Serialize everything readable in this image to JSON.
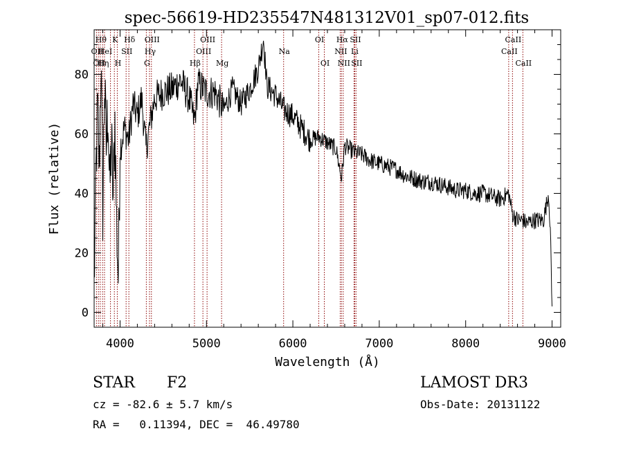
{
  "chart_data": {
    "type": "line",
    "title": "spec-56619-HD235547N481312V01_sp07-012.fits",
    "xlabel": "Wavelength (Å)",
    "ylabel": "Flux (relative)",
    "xlim": [
      3700,
      9100
    ],
    "ylim": [
      -5,
      95
    ],
    "xticks": [
      4000,
      5000,
      6000,
      7000,
      8000,
      9000
    ],
    "yticks": [
      0,
      20,
      40,
      60,
      80
    ],
    "grid": false,
    "legend": "none",
    "line_color": "#000000",
    "marker_color": "#8b0000",
    "series": [
      {
        "x": [
          3700,
          3720,
          3740,
          3760,
          3780,
          3800,
          3820,
          3840,
          3860,
          3880,
          3900,
          3920,
          3940,
          3960,
          3980,
          4000,
          4050,
          4100,
          4150,
          4200,
          4250,
          4300,
          4340,
          4400,
          4500,
          4600,
          4700,
          4800,
          4861,
          4900,
          5000,
          5100,
          5200,
          5300,
          5400,
          5500,
          5600,
          5660,
          5700,
          5800,
          5900,
          6000,
          6100,
          6200,
          6300,
          6400,
          6500,
          6563,
          6600,
          6700,
          6800,
          6900,
          7000,
          7100,
          7200,
          7300,
          7400,
          7500,
          7600,
          7700,
          7800,
          7900,
          8000,
          8100,
          8200,
          8300,
          8400,
          8498,
          8542,
          8600,
          8662,
          8700,
          8800,
          8900,
          8960,
          8980,
          9000
        ],
        "y": [
          8,
          45,
          68,
          48,
          86,
          35,
          78,
          55,
          70,
          40,
          58,
          38,
          65,
          30,
          12,
          55,
          62,
          58,
          70,
          66,
          72,
          55,
          62,
          72,
          74,
          75,
          78,
          72,
          64,
          77,
          74,
          74,
          68,
          75,
          70,
          75,
          82,
          92,
          76,
          73,
          68,
          66,
          62,
          58,
          59,
          57,
          55,
          45,
          56,
          54,
          53,
          51,
          50,
          49,
          48,
          46,
          45,
          44,
          44,
          43,
          42,
          41,
          41,
          40,
          40,
          39,
          38,
          40,
          33,
          31,
          31,
          30,
          31,
          31,
          40,
          28,
          1
        ]
      }
    ]
  },
  "line_marks": [
    {
      "w": 3727,
      "label": "OII",
      "row": 2
    },
    {
      "w": 3750,
      "label": "OII",
      "row": 3
    },
    {
      "w": 3771,
      "label": "Hθ",
      "row": 1
    },
    {
      "w": 3798,
      "label": "Hη",
      "row": 3
    },
    {
      "w": 3820,
      "label": "HeI",
      "row": 2
    },
    {
      "w": 3889,
      "label": "",
      "row": 0
    },
    {
      "w": 3934,
      "label": "K",
      "row": 1
    },
    {
      "w": 3968,
      "label": "H",
      "row": 3
    },
    {
      "w": 4070,
      "label": "SII",
      "row": 2
    },
    {
      "w": 4102,
      "label": "Hδ",
      "row": 1
    },
    {
      "w": 4304,
      "label": "G",
      "row": 3
    },
    {
      "w": 4341,
      "label": "Hγ",
      "row": 2
    },
    {
      "w": 4363,
      "label": "OIII",
      "row": 1
    },
    {
      "w": 4861,
      "label": "Hβ",
      "row": 3
    },
    {
      "w": 4959,
      "label": "OIII",
      "row": 2
    },
    {
      "w": 5007,
      "label": "OIII",
      "row": 1
    },
    {
      "w": 5175,
      "label": "Mg",
      "row": 3
    },
    {
      "w": 5893,
      "label": "Na",
      "row": 2
    },
    {
      "w": 6300,
      "label": "OI",
      "row": 1
    },
    {
      "w": 6364,
      "label": "OI",
      "row": 3
    },
    {
      "w": 6548,
      "label": "NII",
      "row": 2
    },
    {
      "w": 6563,
      "label": "Hα",
      "row": 1
    },
    {
      "w": 6583,
      "label": "NII",
      "row": 3
    },
    {
      "w": 6708,
      "label": "Li",
      "row": 2
    },
    {
      "w": 6716,
      "label": "SII",
      "row": 1
    },
    {
      "w": 6731,
      "label": "SII",
      "row": 3
    },
    {
      "w": 8498,
      "label": "CaII",
      "row": 2
    },
    {
      "w": 8542,
      "label": "CaII",
      "row": 1
    },
    {
      "w": 8662,
      "label": "CaII",
      "row": 3
    }
  ],
  "info": {
    "obj_class": "STAR",
    "subclass": "F2",
    "survey": "LAMOST DR3",
    "cz": "cz = -82.6 ± 5.7 km/s",
    "obs_date": "Obs-Date: 20131122",
    "radec": "RA =   0.11394, DEC =  46.49780"
  }
}
